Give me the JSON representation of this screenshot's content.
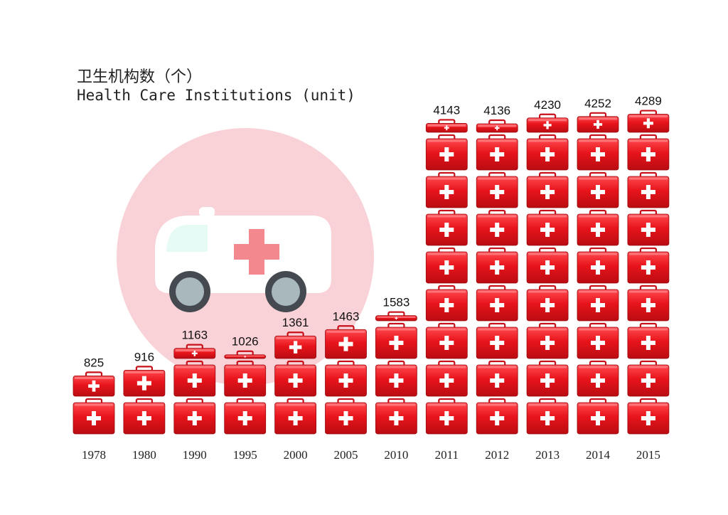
{
  "title_zh": "卫生机构数（个）",
  "title_en": "Health Care Institutions (unit)",
  "chart_data": {
    "type": "bar",
    "categories": [
      "1978",
      "1980",
      "1990",
      "1995",
      "2000",
      "2005",
      "2010",
      "2011",
      "2012",
      "2013",
      "2014",
      "2015"
    ],
    "values": [
      825,
      916,
      1163,
      1026,
      1361,
      1463,
      1583,
      4143,
      4136,
      4230,
      4252,
      4289
    ],
    "title": "卫生机构数（个） Health Care Institutions (unit)",
    "xlabel": "",
    "ylabel": "",
    "unit_per_icon": 500,
    "grid": false,
    "legend": "none",
    "colors": {
      "icon_red": "#e8141b",
      "icon_dark": "#a80a0f",
      "cross": "#ffffff",
      "circle": "#f9d2d8",
      "ambulance_body": "#ffffff",
      "ambulance_cross": "#f3898f",
      "window": "#e6faf6",
      "wheel": "#444a50",
      "hub": "#a9b8bd"
    }
  }
}
